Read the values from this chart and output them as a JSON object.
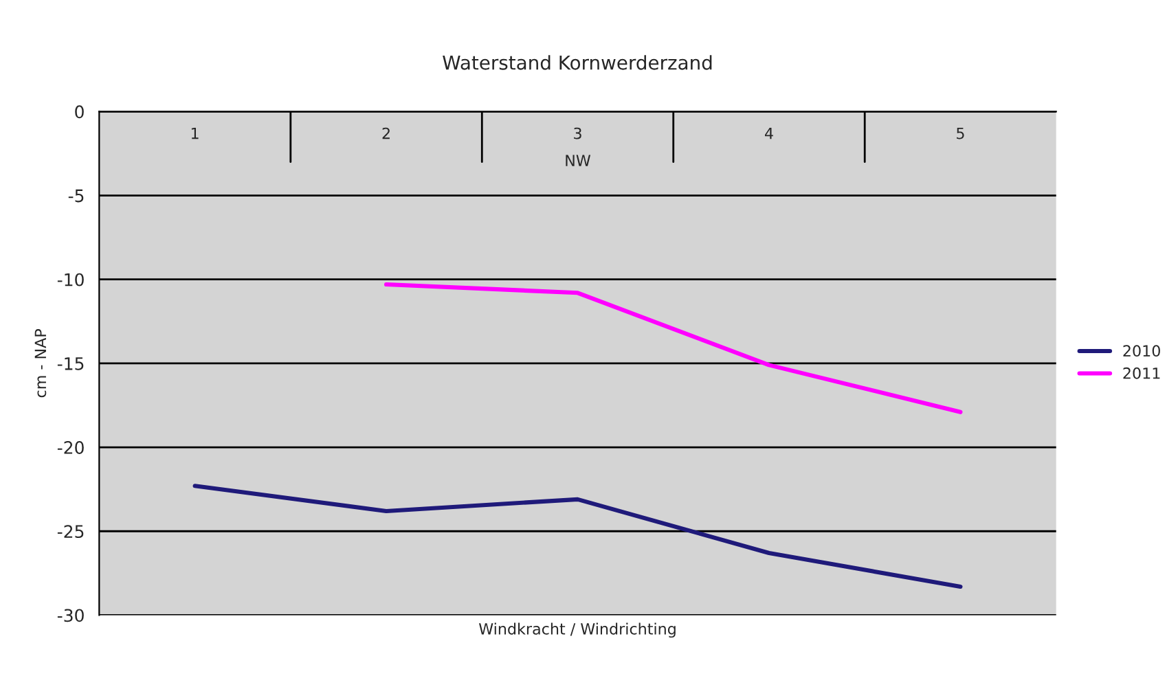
{
  "chart_data": {
    "type": "line",
    "title": "Waterstand Kornwerderzand",
    "xlabel": "Windkracht / Windrichting",
    "ylabel": "cm - NAP",
    "categories": [
      "1",
      "2",
      "3",
      "4",
      "5"
    ],
    "series": [
      {
        "name": "2010",
        "color": "#1f1a7a",
        "values": [
          -22.3,
          -23.8,
          -23.1,
          -26.3,
          -28.3
        ]
      },
      {
        "name": "2011",
        "color": "#ff00ff",
        "values": [
          null,
          -10.3,
          -10.8,
          -15.1,
          -17.9
        ]
      }
    ],
    "annotations": [
      "NW"
    ],
    "ylim": [
      -30,
      0
    ],
    "yticks": [
      -30,
      -25,
      -20,
      -15,
      -10,
      -5,
      0
    ],
    "grid": "y",
    "legend": "right",
    "marker": "none",
    "line_style": "solid"
  }
}
